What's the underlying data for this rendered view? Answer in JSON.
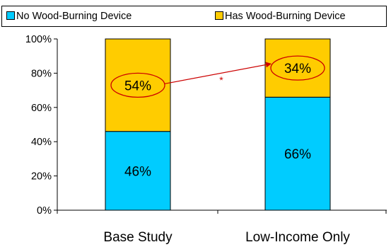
{
  "chart_data": {
    "type": "bar",
    "stacked": true,
    "categories": [
      "Base Study",
      "Low-Income Only"
    ],
    "series": [
      {
        "name": "No Wood-Burning Device",
        "values": [
          46,
          66
        ],
        "labels": [
          "46%",
          "66%"
        ],
        "color": "#00ccff"
      },
      {
        "name": "Has Wood-Burning Device",
        "values": [
          54,
          34
        ],
        "labels": [
          "54%",
          "34%"
        ],
        "color": "#ffcc00"
      }
    ],
    "ylim": [
      0,
      100
    ],
    "yticks": [
      0,
      20,
      40,
      60,
      80,
      100
    ],
    "ytick_labels": [
      "0%",
      "20%",
      "40%",
      "60%",
      "80%",
      "100%"
    ],
    "legend_position": "top",
    "grid": false,
    "annotation": {
      "type": "arrow",
      "from": "Base Study: Has Wood-Burning Device",
      "to": "Low-Income Only: Has Wood-Burning Device",
      "label": "*",
      "color": "#cc0000",
      "circled_labels": true
    }
  }
}
